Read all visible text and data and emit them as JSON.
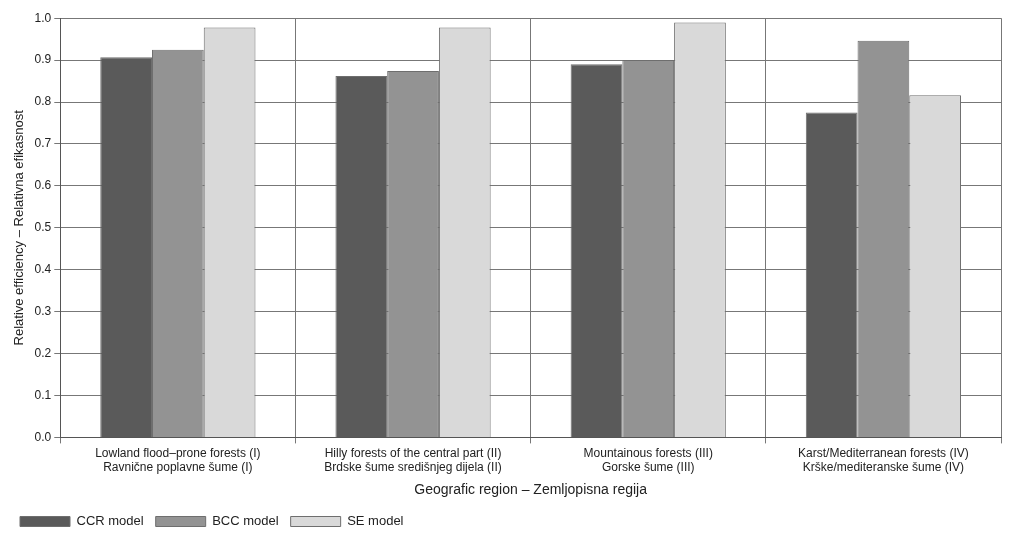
{
  "chart_data": {
    "type": "bar",
    "xlabel": "Geografic region – Zemljopisna regija",
    "ylabel": "Relative efficiency – Relativna efikasnost",
    "categories": [
      "Lowland flood–prone forests (I)\nRavnične poplavne šume (I)",
      "Hilly forests of the central part (II)\nBrdske šume središnjeg dijela (II)",
      "Mountainous forests (III)\nGorske šume (III)",
      "Karst/Mediterranean forests (IV)\nKrške/mediteranske šume (IV)"
    ],
    "series": [
      {
        "name": "CCR model",
        "color": "#5a5a5a",
        "values": [
          0.907,
          0.862,
          0.89,
          0.775
        ]
      },
      {
        "name": "BCC model",
        "color": "#939393",
        "values": [
          0.925,
          0.874,
          0.9,
          0.946
        ]
      },
      {
        "name": "SE model",
        "color": "#d9d9d9",
        "values": [
          0.978,
          0.978,
          0.99,
          0.816
        ]
      }
    ],
    "ylim": [
      0,
      1
    ],
    "yticks": [
      {
        "value": 0,
        "label": "0.0"
      },
      0.1,
      0.2,
      0.3,
      0.4,
      0.5,
      0.6,
      0.7,
      0.8,
      0.9,
      {
        "value": 1,
        "label": "1.0"
      }
    ],
    "grid": true,
    "legend": "bottom left"
  }
}
